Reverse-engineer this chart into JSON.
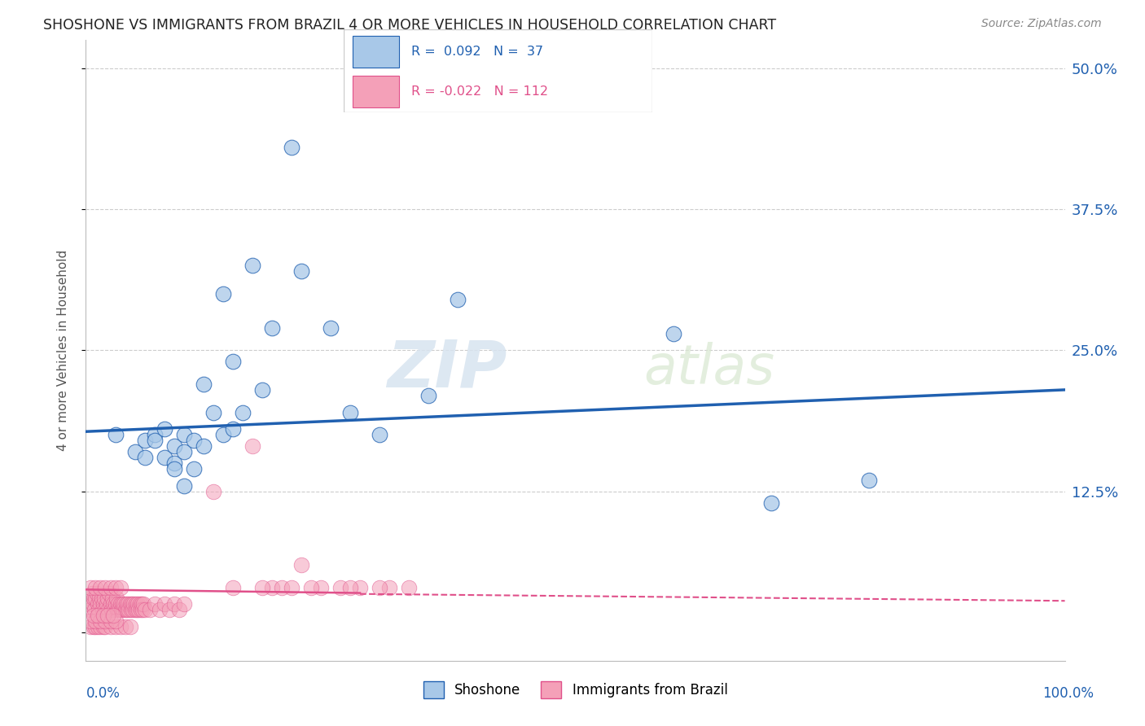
{
  "title": "SHOSHONE VS IMMIGRANTS FROM BRAZIL 4 OR MORE VEHICLES IN HOUSEHOLD CORRELATION CHART",
  "source_text": "Source: ZipAtlas.com",
  "ylabel": "4 or more Vehicles in Household",
  "legend_label1": "Shoshone",
  "legend_label2": "Immigrants from Brazil",
  "r1": 0.092,
  "n1": 37,
  "r2": -0.022,
  "n2": 112,
  "color_blue": "#a8c8e8",
  "color_pink": "#f4a0b8",
  "color_blue_line": "#2060b0",
  "color_pink_line": "#e0508a",
  "watermark_zip": "ZIP",
  "watermark_atlas": "atlas",
  "shoshone_x": [
    0.03,
    0.05,
    0.06,
    0.07,
    0.08,
    0.09,
    0.09,
    0.1,
    0.1,
    0.11,
    0.12,
    0.13,
    0.14,
    0.15,
    0.16,
    0.17,
    0.18,
    0.19,
    0.21,
    0.22,
    0.25,
    0.27,
    0.3,
    0.35,
    0.38,
    0.6,
    0.7,
    0.8,
    0.06,
    0.07,
    0.08,
    0.09,
    0.1,
    0.11,
    0.12,
    0.14,
    0.15
  ],
  "shoshone_y": [
    0.175,
    0.16,
    0.17,
    0.175,
    0.155,
    0.15,
    0.165,
    0.175,
    0.16,
    0.17,
    0.22,
    0.195,
    0.3,
    0.24,
    0.195,
    0.325,
    0.215,
    0.27,
    0.43,
    0.32,
    0.27,
    0.195,
    0.175,
    0.21,
    0.295,
    0.265,
    0.115,
    0.135,
    0.155,
    0.17,
    0.18,
    0.145,
    0.13,
    0.145,
    0.165,
    0.175,
    0.18
  ],
  "brazil_x_cluster": [
    0.003,
    0.004,
    0.005,
    0.006,
    0.007,
    0.008,
    0.009,
    0.01,
    0.011,
    0.012,
    0.013,
    0.014,
    0.015,
    0.016,
    0.017,
    0.018,
    0.019,
    0.02,
    0.021,
    0.022,
    0.023,
    0.024,
    0.025,
    0.026,
    0.027,
    0.028,
    0.029,
    0.03,
    0.031,
    0.032,
    0.033,
    0.034,
    0.035,
    0.036,
    0.037,
    0.038,
    0.039,
    0.04,
    0.041,
    0.042,
    0.043,
    0.044,
    0.045,
    0.046,
    0.047,
    0.048,
    0.049,
    0.05,
    0.051,
    0.052,
    0.053,
    0.054,
    0.055,
    0.056,
    0.057,
    0.058,
    0.059,
    0.06,
    0.065,
    0.07,
    0.075,
    0.08,
    0.085,
    0.09,
    0.095,
    0.1,
    0.005,
    0.008,
    0.01,
    0.012,
    0.015,
    0.018,
    0.02,
    0.025,
    0.03,
    0.035,
    0.04,
    0.045,
    0.005,
    0.01,
    0.015,
    0.02,
    0.025,
    0.03,
    0.008,
    0.012,
    0.018,
    0.022,
    0.028,
    0.005,
    0.01,
    0.015,
    0.02,
    0.025,
    0.03,
    0.035
  ],
  "brazil_y_cluster": [
    0.025,
    0.03,
    0.02,
    0.035,
    0.025,
    0.03,
    0.02,
    0.03,
    0.035,
    0.025,
    0.02,
    0.03,
    0.025,
    0.03,
    0.02,
    0.025,
    0.03,
    0.02,
    0.025,
    0.03,
    0.02,
    0.035,
    0.025,
    0.02,
    0.03,
    0.025,
    0.02,
    0.025,
    0.03,
    0.02,
    0.025,
    0.02,
    0.025,
    0.02,
    0.025,
    0.02,
    0.025,
    0.02,
    0.025,
    0.02,
    0.025,
    0.02,
    0.025,
    0.02,
    0.025,
    0.02,
    0.025,
    0.02,
    0.025,
    0.02,
    0.025,
    0.02,
    0.025,
    0.02,
    0.025,
    0.02,
    0.025,
    0.02,
    0.02,
    0.025,
    0.02,
    0.025,
    0.02,
    0.025,
    0.02,
    0.025,
    0.005,
    0.005,
    0.005,
    0.005,
    0.005,
    0.005,
    0.005,
    0.005,
    0.005,
    0.005,
    0.005,
    0.005,
    0.01,
    0.01,
    0.01,
    0.01,
    0.01,
    0.01,
    0.015,
    0.015,
    0.015,
    0.015,
    0.015,
    0.04,
    0.04,
    0.04,
    0.04,
    0.04,
    0.04,
    0.04
  ],
  "brazil_x_spread": [
    0.13,
    0.17,
    0.19,
    0.2,
    0.22,
    0.24,
    0.26,
    0.28,
    0.31,
    0.33,
    0.15,
    0.18,
    0.21,
    0.23,
    0.27,
    0.3
  ],
  "brazil_y_spread": [
    0.125,
    0.165,
    0.04,
    0.04,
    0.06,
    0.04,
    0.04,
    0.04,
    0.04,
    0.04,
    0.04,
    0.04,
    0.04,
    0.04,
    0.04,
    0.04
  ],
  "shoshone_trend_x": [
    0.0,
    1.0
  ],
  "shoshone_trend_y": [
    0.178,
    0.215
  ],
  "brazil_trend_x": [
    0.0,
    1.0
  ],
  "brazil_trend_y": [
    0.038,
    0.028
  ],
  "xlim": [
    0.0,
    1.0
  ],
  "ylim": [
    -0.025,
    0.525
  ],
  "ytick_vals": [
    0.0,
    0.125,
    0.25,
    0.375,
    0.5
  ],
  "ytick_labels_right": [
    "",
    "12.5%",
    "25.0%",
    "37.5%",
    "50.0%"
  ]
}
